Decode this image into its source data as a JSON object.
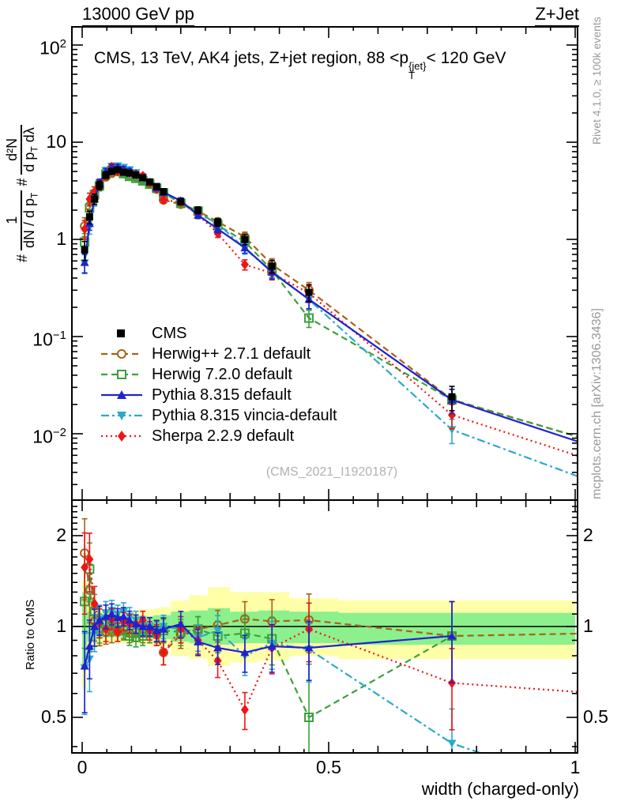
{
  "header": {
    "left_title": "13000 GeV pp",
    "right_title": "Z+Jet"
  },
  "panel_title": {
    "pre": "CMS, 13 TeV, AK4 jets, Z+jet region, 88 <p",
    "sup": "{jet}",
    "sub": "T",
    "post": "< 120 GeV"
  },
  "watermark": "(CMS_2021_I1920187)",
  "credits": {
    "rivet": "Rivet 4.1.0, ≥ 100k events",
    "mcplots": "mcplots.cern.ch [arXiv:1306.3436]"
  },
  "y_main_label": {
    "hash1": "#",
    "f1_num": "1",
    "f1_den_pre": "dN / d p",
    "f1_den_sub": "T",
    "hash2": "#",
    "f2_num": "d²N",
    "f2_den_pre": "d p",
    "f2_den_sub": "T",
    "f2_den_post": " dλ"
  },
  "axes": {
    "x": {
      "label": "width (charged-only)",
      "min": 0,
      "max": 1,
      "ticks": [
        {
          "v": 0,
          "t": "0"
        },
        {
          "v": 0.5,
          "t": "0.5"
        },
        {
          "v": 1,
          "t": "1"
        }
      ]
    },
    "y_main": {
      "scale": "log",
      "ticks": [
        {
          "v": 100,
          "base": "10",
          "exp": "2"
        },
        {
          "v": 10,
          "base": "10",
          "exp": ""
        },
        {
          "v": 1,
          "base": "1",
          "exp": ""
        },
        {
          "v": 0.1,
          "base": "10",
          "exp": "-1"
        },
        {
          "v": 0.01,
          "base": "10",
          "exp": "-2"
        }
      ]
    },
    "y_ratio": {
      "label": "Ratio to CMS",
      "scale": "log",
      "ticks": [
        {
          "v": 2,
          "t": "2"
        },
        {
          "v": 1,
          "t": "1"
        },
        {
          "v": 0.5,
          "t": "0.5"
        }
      ]
    }
  },
  "chart_data": [
    {
      "type": "scatter",
      "title": "CMS, 13 TeV, AK4 jets, Z+jet region, 88 <pT{jet}< 120 GeV",
      "xlabel": "width (charged-only)",
      "ylabel": "# 1/(dN/dpT) # d²N/(dpT dλ)",
      "xlim": [
        0,
        1
      ],
      "ylim": [
        0.002,
        150
      ],
      "yscale": "log",
      "grid": false,
      "legend_position": "center-left",
      "x": [
        0.005,
        0.015,
        0.025,
        0.035,
        0.048,
        0.06,
        0.072,
        0.084,
        0.096,
        0.109,
        0.123,
        0.137,
        0.151,
        0.165,
        0.2,
        0.235,
        0.275,
        0.33,
        0.385,
        0.46,
        0.75
      ],
      "rel_err": [
        0.22,
        0.15,
        0.12,
        0.1,
        0.08,
        0.07,
        0.06,
        0.06,
        0.06,
        0.06,
        0.06,
        0.06,
        0.06,
        0.07,
        0.07,
        0.08,
        0.09,
        0.12,
        0.15,
        0.2,
        0.28
      ],
      "series": [
        {
          "name": "CMS",
          "color": "#000000",
          "marker": "sq",
          "dash": "none",
          "has_line": false,
          "y": [
            0.78,
            1.7,
            2.6,
            3.6,
            4.6,
            5.0,
            5.2,
            4.9,
            4.8,
            4.6,
            4.3,
            3.9,
            3.5,
            3.1,
            2.45,
            2.0,
            1.5,
            1.0,
            0.53,
            0.285,
            0.024
          ]
        },
        {
          "name": "Herwig++ 2.7.1 default",
          "color": "#aa6018",
          "marker": "circ",
          "dash": "8 5",
          "has_line": true,
          "y_ext": 0.008,
          "y": [
            1.37,
            2.2,
            2.7,
            3.5,
            4.4,
            4.8,
            5.0,
            4.8,
            4.55,
            4.4,
            4.1,
            3.7,
            3.3,
            2.55,
            2.3,
            1.95,
            1.52,
            1.06,
            0.55,
            0.3,
            0.0225
          ]
        },
        {
          "name": "Herwig 7.2.0 default",
          "color": "#3ca03c",
          "marker": "osq",
          "dash": "8 5",
          "has_line": true,
          "y_ext": 0.008,
          "y": [
            0.94,
            2.1,
            2.9,
            3.55,
            4.7,
            5.15,
            5.3,
            4.75,
            4.45,
            4.25,
            4.0,
            3.7,
            3.35,
            3.0,
            2.35,
            1.95,
            1.4,
            0.95,
            0.48,
            0.155,
            0.0223
          ]
        },
        {
          "name": "Pythia 8.315 default",
          "color": "#2222cc",
          "marker": "tri",
          "dash": "none",
          "has_line": true,
          "y_ext": 0.007,
          "y": [
            0.58,
            1.46,
            2.6,
            3.78,
            4.95,
            5.5,
            5.55,
            5.3,
            5.05,
            4.7,
            4.3,
            3.9,
            3.4,
            3.05,
            2.5,
            1.78,
            1.28,
            0.82,
            0.46,
            0.242,
            0.0223
          ]
        },
        {
          "name": "Pythia 8.315 vincia-default",
          "color": "#2aaac8",
          "marker": "trid",
          "dash": "10 4 3 4",
          "has_line": true,
          "y_ext": 0.003,
          "y": [
            0.57,
            1.33,
            2.5,
            3.8,
            5.1,
            5.65,
            5.7,
            5.5,
            5.2,
            4.85,
            4.35,
            3.9,
            3.4,
            3.1,
            2.4,
            1.84,
            1.46,
            0.8,
            0.47,
            0.24,
            0.011
          ]
        },
        {
          "name": "Sherpa 2.2.9 default",
          "color": "#f01414",
          "marker": "dia",
          "dash": "2 4",
          "has_line": true,
          "y_ext": 0.005,
          "y": [
            1.28,
            2.6,
            3.1,
            3.7,
            4.5,
            5.6,
            5.0,
            5.1,
            4.9,
            4.7,
            4.5,
            3.8,
            3.3,
            2.55,
            2.4,
            1.8,
            1.15,
            0.55,
            0.45,
            0.28,
            0.0156
          ]
        }
      ]
    },
    {
      "type": "ratio",
      "ylabel": "Ratio to CMS",
      "ylim": [
        0.38,
        2.56
      ],
      "yscale": "log",
      "reference": 1,
      "rel_err": [
        0.3,
        0.22,
        0.14,
        0.11,
        0.09,
        0.08,
        0.07,
        0.07,
        0.07,
        0.07,
        0.07,
        0.07,
        0.08,
        0.09,
        0.1,
        0.1,
        0.12,
        0.14,
        0.18,
        0.22,
        0.3
      ],
      "bands": {
        "band_colors": {
          "outer": "#ffffa8",
          "inner": "#8cf08c"
        },
        "edges": [
          0,
          0.01,
          0.02,
          0.03,
          0.042,
          0.054,
          0.066,
          0.078,
          0.09,
          0.102,
          0.116,
          0.13,
          0.144,
          0.158,
          0.18,
          0.217,
          0.255,
          0.3,
          0.357,
          0.42,
          0.52,
          1.0
        ],
        "yellow_hi": [
          1.42,
          1.25,
          1.2,
          1.16,
          1.14,
          1.13,
          1.13,
          1.13,
          1.13,
          1.13,
          1.14,
          1.14,
          1.15,
          1.16,
          1.22,
          1.27,
          1.35,
          1.3,
          1.3,
          1.24,
          1.22
        ],
        "yellow_lo": [
          0.62,
          0.8,
          0.84,
          0.86,
          0.87,
          0.88,
          0.88,
          0.88,
          0.88,
          0.88,
          0.87,
          0.87,
          0.86,
          0.86,
          0.8,
          0.78,
          0.74,
          0.76,
          0.77,
          0.8,
          0.78
        ],
        "green_hi": [
          1.3,
          1.12,
          1.1,
          1.09,
          1.08,
          1.08,
          1.08,
          1.08,
          1.08,
          1.08,
          1.08,
          1.08,
          1.09,
          1.09,
          1.12,
          1.13,
          1.15,
          1.12,
          1.13,
          1.12,
          1.11
        ],
        "green_lo": [
          0.72,
          0.89,
          0.9,
          0.91,
          0.92,
          0.92,
          0.92,
          0.92,
          0.92,
          0.92,
          0.92,
          0.92,
          0.91,
          0.91,
          0.89,
          0.88,
          0.87,
          0.88,
          0.88,
          0.88,
          0.87
        ]
      },
      "series": [
        {
          "name": "Herwig++ 2.7.1 default",
          "color": "#aa6018",
          "marker": "circ",
          "dash": "8 5",
          "has_line": true,
          "ratio_ext": 0.95,
          "ratio": [
            1.75,
            1.32,
            1.04,
            0.97,
            0.96,
            0.96,
            0.96,
            0.98,
            0.95,
            0.96,
            0.95,
            0.95,
            0.94,
            0.82,
            0.94,
            0.98,
            1.01,
            1.06,
            1.04,
            1.05,
            0.93
          ]
        },
        {
          "name": "Herwig 7.2.0 default",
          "color": "#3ca03c",
          "marker": "osq",
          "dash": "8 5",
          "has_line": true,
          "ratio": [
            1.21,
            1.55,
            1.12,
            0.99,
            1.02,
            1.03,
            1.02,
            0.97,
            0.93,
            0.92,
            0.93,
            0.95,
            0.96,
            0.97,
            0.96,
            0.98,
            0.93,
            0.95,
            0.91,
            0.5,
            0.93
          ],
          "ratio_err": [
            0.3,
            0.22,
            0.14,
            0.11,
            0.09,
            0.08,
            0.07,
            0.07,
            0.07,
            0.07,
            0.07,
            0.07,
            0.08,
            0.09,
            0.1,
            0.1,
            0.12,
            0.14,
            0.18,
            0.5,
            0.3
          ]
        },
        {
          "name": "Pythia 8.315 default",
          "color": "#2222cc",
          "marker": "tri",
          "dash": "none",
          "has_line": true,
          "ratio": [
            0.74,
            0.86,
            1.0,
            1.05,
            1.08,
            1.1,
            1.07,
            1.08,
            1.05,
            1.02,
            1.0,
            1.0,
            0.97,
            0.98,
            1.02,
            0.89,
            0.85,
            0.82,
            0.86,
            0.85,
            0.93
          ]
        },
        {
          "name": "Pythia 8.315 vincia-default",
          "color": "#2aaac8",
          "marker": "trid",
          "dash": "10 4 3 4",
          "has_line": true,
          "ratio_ext": 0.28,
          "ratio": [
            0.73,
            0.78,
            0.96,
            1.06,
            1.11,
            1.13,
            1.1,
            1.12,
            1.08,
            1.05,
            1.01,
            1.0,
            0.97,
            1.0,
            0.98,
            0.92,
            0.97,
            0.8,
            0.88,
            0.84,
            0.41
          ]
        },
        {
          "name": "Sherpa 2.2.9 default",
          "color": "#f01414",
          "marker": "dia",
          "dash": "2 4",
          "has_line": true,
          "ratio_ext": 0.6,
          "ratio": [
            1.57,
            1.67,
            1.19,
            1.03,
            0.98,
            1.06,
            0.96,
            1.04,
            1.02,
            1.02,
            1.05,
            0.97,
            0.94,
            0.82,
            0.98,
            0.9,
            0.77,
            0.53,
            0.85,
            0.98,
            0.65
          ]
        }
      ]
    }
  ]
}
